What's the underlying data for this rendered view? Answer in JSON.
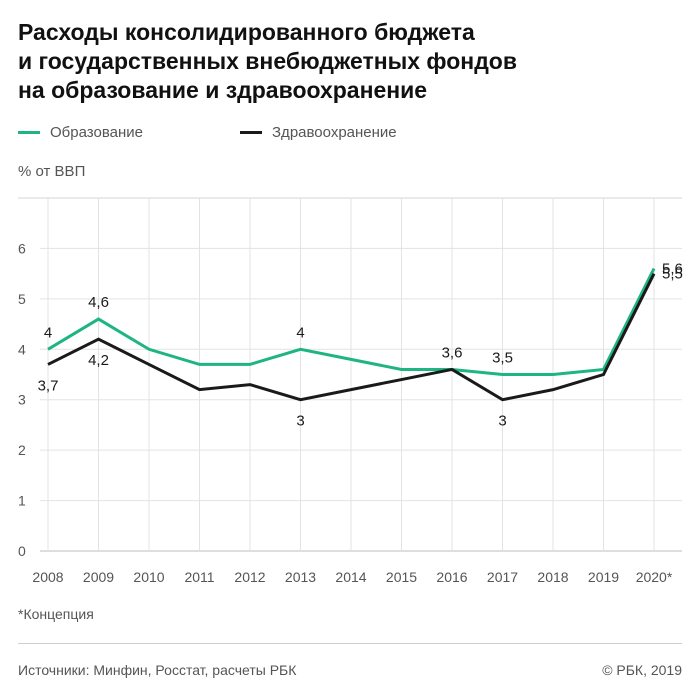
{
  "chart_data": {
    "type": "line",
    "title_lines": [
      "Расходы консолидированного бюджета",
      "и государственных внебюджетных фондов",
      "на образование и здравоохранение"
    ],
    "ylabel": "% от ВВП",
    "xlabel": "",
    "x": [
      "2008",
      "2009",
      "2010",
      "2011",
      "2012",
      "2013",
      "2014",
      "2015",
      "2016",
      "2017",
      "2018",
      "2019",
      "2020*"
    ],
    "yticks": [
      0,
      1,
      2,
      3,
      4,
      5,
      6
    ],
    "ylim": [
      0,
      7
    ],
    "grid": "horizontal",
    "legend_position": "top-left",
    "series": [
      {
        "name": "Образование",
        "color": "#1eb582",
        "values": [
          4.0,
          4.6,
          4.0,
          3.7,
          3.7,
          4.0,
          3.8,
          3.6,
          3.6,
          3.5,
          3.5,
          3.6,
          5.6
        ],
        "labels": [
          {
            "index": 0,
            "text": "4",
            "pos": "above"
          },
          {
            "index": 1,
            "text": "4,6",
            "pos": "above"
          },
          {
            "index": 5,
            "text": "4",
            "pos": "above"
          },
          {
            "index": 9,
            "text": "3,5",
            "pos": "above"
          },
          {
            "index": 12,
            "text": "5,6",
            "pos": "right"
          }
        ]
      },
      {
        "name": "Здравоохранение",
        "color": "#1a1a1a",
        "values": [
          3.7,
          4.2,
          3.7,
          3.2,
          3.3,
          3.0,
          3.2,
          3.4,
          3.6,
          3.0,
          3.2,
          3.5,
          5.5
        ],
        "labels": [
          {
            "index": 0,
            "text": "3,7",
            "pos": "below"
          },
          {
            "index": 1,
            "text": "4,2",
            "pos": "below"
          },
          {
            "index": 5,
            "text": "3",
            "pos": "below"
          },
          {
            "index": 8,
            "text": "3,6",
            "pos": "above"
          },
          {
            "index": 9,
            "text": "3",
            "pos": "below"
          },
          {
            "index": 12,
            "text": "5,5",
            "pos": "right"
          }
        ]
      }
    ]
  },
  "footnote": "*Концепция",
  "sources": "Источники: Минфин, Росстат, расчеты РБК",
  "copyright": "© РБК, 2019"
}
